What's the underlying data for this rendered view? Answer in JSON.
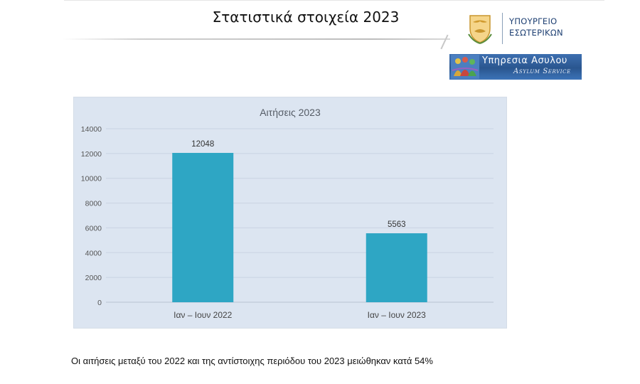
{
  "slide": {
    "title": "Στατιστικά στοιχεία 2023",
    "caption": "Οι αιτήσεις μεταξύ του 2022 και της αντίστοιχης περιόδου του 2023 μειώθηκαν κατά 54%"
  },
  "logos": {
    "ministry_line1": "ΥΠΟΥΡΓΕΙΟ",
    "ministry_line2": "ΕΣΩΤΕΡΙΚΩΝ",
    "ministry_icon": "cyprus-emblem-icon",
    "asylum_line1": "Υπηρεσια Ασυλου",
    "asylum_line2": "Asylum Service",
    "asylum_icon": "people-figures-icon"
  },
  "colors": {
    "bar": "#2ea6c4",
    "chart_background": "#dce5f1",
    "ministry_text": "#1d3f72",
    "banner": "#2f5f9c"
  },
  "chart_data": {
    "type": "bar",
    "title": "Αιτήσεις 2023",
    "categories": [
      "Ιαν – Ιουν 2022",
      "Ιαν – Ιουν 2023"
    ],
    "values": [
      12048,
      5563
    ],
    "data_labels": [
      "12048",
      "5563"
    ],
    "ylim": [
      0,
      14000
    ],
    "yticks": [
      0,
      2000,
      4000,
      6000,
      8000,
      10000,
      12000,
      14000
    ],
    "ytick_labels": [
      "0",
      "2000",
      "4000",
      "6000",
      "8000",
      "10000",
      "12000",
      "14000"
    ],
    "grid": true,
    "legend": "none",
    "xlabel": "",
    "ylabel": ""
  }
}
